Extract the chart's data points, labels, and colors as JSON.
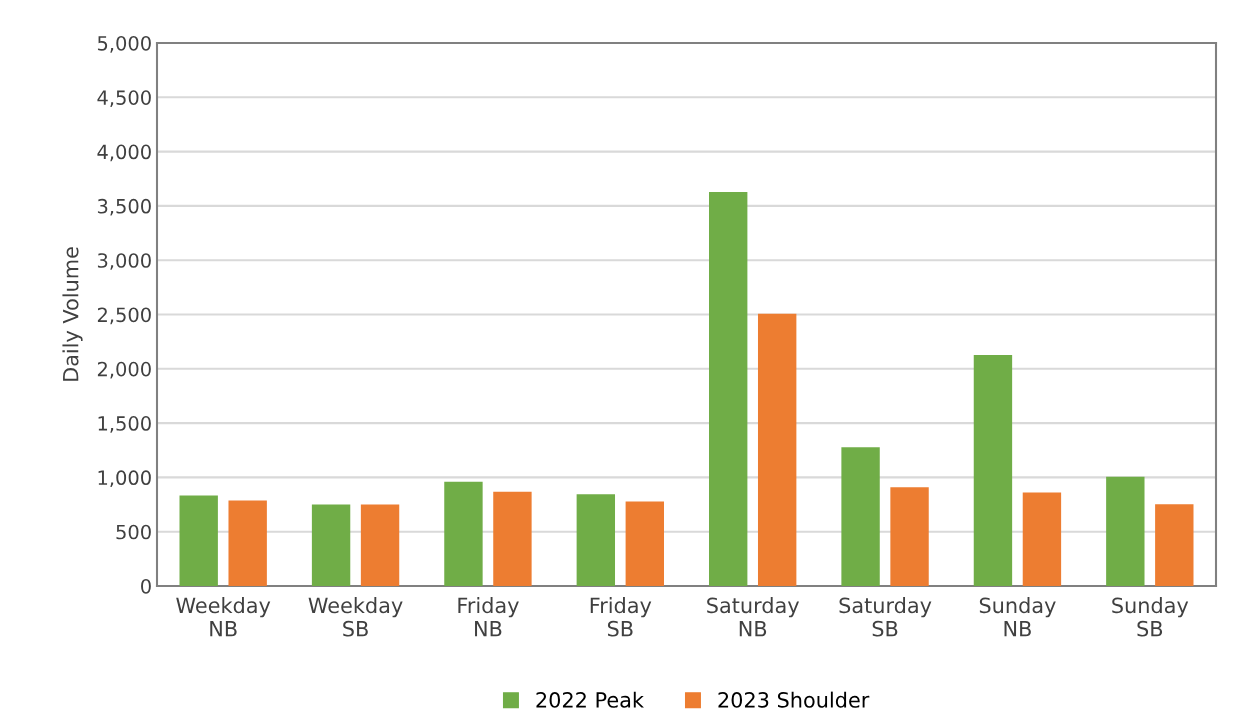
{
  "chart_data": {
    "type": "bar",
    "ylabel": "Daily Volume",
    "categories": [
      "Weekday\nNB",
      "Weekday\nSB",
      "Friday\nNB",
      "Friday\nSB",
      "Saturday\nNB",
      "Saturday\nSB",
      "Sunday\nNB",
      "Sunday\nSB"
    ],
    "series": [
      {
        "name": "2022 Peak",
        "color": "#70ad47",
        "values": [
          834,
          750,
          959,
          844,
          3627,
          1277,
          2127,
          1006
        ]
      },
      {
        "name": "2023 Shoulder",
        "color": "#ed7d31",
        "values": [
          788,
          750,
          869,
          778,
          2506,
          909,
          862,
          753
        ]
      }
    ],
    "ylim": [
      0,
      5000
    ],
    "yticks": [
      {
        "value": 0,
        "label": "0"
      },
      {
        "value": 500,
        "label": "500"
      },
      {
        "value": 1000,
        "label": "1,000"
      },
      {
        "value": 1500,
        "label": "1,500"
      },
      {
        "value": 2000,
        "label": "2,000"
      },
      {
        "value": 2500,
        "label": "2,500"
      },
      {
        "value": 3000,
        "label": "3,000"
      },
      {
        "value": 3500,
        "label": "3,500"
      },
      {
        "value": 4000,
        "label": "4,000"
      },
      {
        "value": 4500,
        "label": "4,500"
      },
      {
        "value": 5000,
        "label": "5,000"
      }
    ],
    "grid": "y",
    "legend": "bottom"
  }
}
